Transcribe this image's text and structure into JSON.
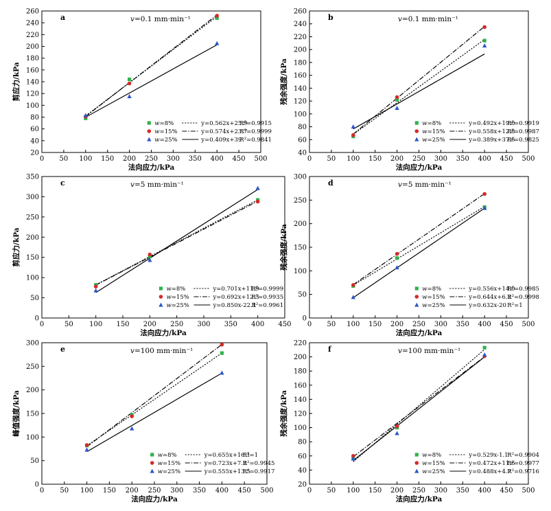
{
  "chart_data": [
    {
      "type": "scatter",
      "panel_label": "a",
      "annotation": "v=0.1 mm·min⁻¹",
      "xlabel": "法向应力/kPa",
      "ylabel": "剪应力/kPa",
      "xlim": [
        0,
        500
      ],
      "xticks": [
        0,
        50,
        100,
        150,
        200,
        250,
        300,
        350,
        400,
        450,
        500
      ],
      "ylim": [
        20,
        260
      ],
      "yticks": [
        20,
        40,
        60,
        80,
        100,
        120,
        140,
        160,
        180,
        200,
        220,
        240,
        260
      ],
      "series": [
        {
          "name": "w=8%",
          "marker": "square",
          "color": "#2fb34a",
          "points": [
            [
              100,
              78
            ],
            [
              200,
              144
            ],
            [
              400,
              248
            ]
          ],
          "fit": {
            "slope": 0.562,
            "intercept": 25.9,
            "dash": "dotted",
            "label": "y=0.562x+25.9",
            "r2": "R²=0.9915"
          }
        },
        {
          "name": "w=15%",
          "marker": "circle",
          "color": "#d62a2a",
          "points": [
            [
              100,
              81
            ],
            [
              200,
              137
            ],
            [
              400,
              252
            ]
          ],
          "fit": {
            "slope": 0.574,
            "intercept": 23.7,
            "dash": "dashdot",
            "label": "y=0.574x+23.7",
            "r2": "R²=0.9999"
          }
        },
        {
          "name": "w=25%",
          "marker": "triangle",
          "color": "#2a57c8",
          "points": [
            [
              100,
              83
            ],
            [
              200,
              115
            ],
            [
              400,
              205
            ]
          ],
          "fit": {
            "slope": 0.409,
            "intercept": 39,
            "dash": "solid",
            "label": "y=0.409x+39",
            "r2": "R²=0.9841"
          }
        }
      ]
    },
    {
      "type": "scatter",
      "panel_label": "b",
      "annotation": "v=0.1 mm·min⁻¹",
      "xlabel": "法向应力/kPa",
      "ylabel": "残余强度/kPa",
      "xlim": [
        0,
        500
      ],
      "xticks": [
        0,
        50,
        100,
        150,
        200,
        250,
        300,
        350,
        400,
        450,
        500
      ],
      "ylim": [
        40,
        260
      ],
      "yticks": [
        40,
        60,
        80,
        100,
        120,
        140,
        160,
        180,
        200,
        220,
        240,
        260
      ],
      "series": [
        {
          "name": "w=8%",
          "marker": "square",
          "color": "#2fb34a",
          "points": [
            [
              100,
              65
            ],
            [
              200,
              122
            ],
            [
              400,
              214
            ]
          ],
          "fit": {
            "slope": 0.492,
            "intercept": 19.0,
            "dash": "dotted",
            "label": "y=0.492x+19.0",
            "r2": "R²=0.9919"
          }
        },
        {
          "name": "w=15%",
          "marker": "circle",
          "color": "#d62a2a",
          "points": [
            [
              100,
              67
            ],
            [
              200,
              126
            ],
            [
              400,
              235
            ]
          ],
          "fit": {
            "slope": 0.558,
            "intercept": 12.8,
            "dash": "dashdot",
            "label": "y=0.558x+12.8",
            "r2": "R²=0.9987"
          }
        },
        {
          "name": "w=25%",
          "marker": "triangle",
          "color": "#2a57c8",
          "points": [
            [
              100,
              80
            ],
            [
              200,
              109
            ],
            [
              400,
              206
            ]
          ],
          "fit": {
            "slope": 0.389,
            "intercept": 37.6,
            "dash": "solid",
            "label": "y=0.389x+37.6",
            "r2": "R²=0.9825"
          }
        }
      ]
    },
    {
      "type": "scatter",
      "panel_label": "c",
      "annotation": "v=5 mm·min⁻¹",
      "xlabel": "法向应力/kPa",
      "ylabel": "剪应力/kPa",
      "xlim": [
        0,
        450
      ],
      "xticks": [
        0,
        50,
        100,
        150,
        200,
        250,
        300,
        350,
        400,
        450
      ],
      "ylim": [
        0,
        350
      ],
      "yticks": [
        0,
        50,
        100,
        150,
        200,
        250,
        300,
        350
      ],
      "series": [
        {
          "name": "w=8%",
          "marker": "square",
          "color": "#2fb34a",
          "points": [
            [
              100,
              82
            ],
            [
              200,
              152
            ],
            [
              400,
              292
            ]
          ],
          "fit": {
            "slope": 0.701,
            "intercept": 11.9,
            "dash": "dotted",
            "label": "y=0.701x+11.9",
            "r2": "R²=0.9999"
          }
        },
        {
          "name": "w=15%",
          "marker": "circle",
          "color": "#d62a2a",
          "points": [
            [
              100,
              78
            ],
            [
              200,
              157
            ],
            [
              400,
              288
            ]
          ],
          "fit": {
            "slope": 0.692,
            "intercept": 12.3,
            "dash": "dashdot",
            "label": "y=0.692x+12.3",
            "r2": "R²=0.9935"
          }
        },
        {
          "name": "w=25%",
          "marker": "triangle",
          "color": "#2a57c8",
          "points": [
            [
              100,
              68
            ],
            [
              200,
              143
            ],
            [
              400,
              321
            ]
          ],
          "fit": {
            "slope": 0.85,
            "intercept": -22.1,
            "dash": "solid",
            "label": "y=0.850x-22.1",
            "r2": "R²=0.9961"
          }
        }
      ]
    },
    {
      "type": "scatter",
      "panel_label": "d",
      "annotation": "v=5 mm·min⁻¹",
      "xlabel": "法向应力/kPa",
      "ylabel": "残余强度/kPa",
      "xlim": [
        0,
        500
      ],
      "xticks": [
        0,
        50,
        100,
        150,
        200,
        250,
        300,
        350,
        400,
        450,
        500
      ],
      "ylim": [
        0,
        300
      ],
      "yticks": [
        0,
        50,
        100,
        150,
        200,
        250,
        300
      ],
      "series": [
        {
          "name": "w=8%",
          "marker": "square",
          "color": "#2fb34a",
          "points": [
            [
              100,
              68
            ],
            [
              200,
              127
            ],
            [
              400,
              235
            ]
          ],
          "fit": {
            "slope": 0.556,
            "intercept": 14.0,
            "dash": "dotted",
            "label": "y=0.556x+14.0",
            "r2": "R²=0.9985"
          }
        },
        {
          "name": "w=15%",
          "marker": "circle",
          "color": "#d62a2a",
          "points": [
            [
              100,
              70
            ],
            [
              200,
              136
            ],
            [
              400,
              263
            ]
          ],
          "fit": {
            "slope": 0.644,
            "intercept": 6.2,
            "dash": "dashdot",
            "label": "y=0.644x+6.2",
            "r2": "R²=0.9998"
          }
        },
        {
          "name": "w=25%",
          "marker": "triangle",
          "color": "#2a57c8",
          "points": [
            [
              100,
              44
            ],
            [
              200,
              107
            ],
            [
              400,
              233
            ]
          ],
          "fit": {
            "slope": 0.632,
            "intercept": -20,
            "dash": "solid",
            "label": "y=0.632x-20",
            "r2": "R²=1"
          }
        }
      ]
    },
    {
      "type": "scatter",
      "panel_label": "e",
      "annotation": "v=100 mm·min⁻¹",
      "xlabel": "法向应力/kPa",
      "ylabel": "峰值强度/kPa",
      "xlim": [
        0,
        500
      ],
      "xticks": [
        0,
        50,
        100,
        150,
        200,
        250,
        300,
        350,
        400,
        450,
        500
      ],
      "ylim": [
        0,
        300
      ],
      "yticks": [
        0,
        50,
        100,
        150,
        200,
        250,
        300
      ],
      "series": [
        {
          "name": "w=8%",
          "marker": "square",
          "color": "#2fb34a",
          "points": [
            [
              100,
              82
            ],
            [
              200,
              147
            ],
            [
              400,
              278
            ]
          ],
          "fit": {
            "slope": 0.655,
            "intercept": 16.1,
            "dash": "dotted",
            "label": "y=0.655x+16.1",
            "r2": "R²=1"
          }
        },
        {
          "name": "w=15%",
          "marker": "circle",
          "color": "#d62a2a",
          "points": [
            [
              100,
              83
            ],
            [
              200,
              144
            ],
            [
              400,
              296
            ]
          ],
          "fit": {
            "slope": 0.723,
            "intercept": 7.2,
            "dash": "dashdot",
            "label": "y=0.723x+7.2",
            "r2": "R²=0.9945"
          }
        },
        {
          "name": "w=25%",
          "marker": "triangle",
          "color": "#2a57c8",
          "points": [
            [
              100,
              73
            ],
            [
              200,
              118
            ],
            [
              400,
              236
            ]
          ],
          "fit": {
            "slope": 0.555,
            "intercept": 13.5,
            "dash": "solid",
            "label": "y=0.555x+13.5",
            "r2": "R²=0.9917"
          }
        }
      ]
    },
    {
      "type": "scatter",
      "panel_label": "f",
      "annotation": "v=100 mm·min⁻¹",
      "xlabel": "法向应力/kPa",
      "ylabel": "残余强度/kPa",
      "xlim": [
        0,
        500
      ],
      "xticks": [
        0,
        50,
        100,
        150,
        200,
        250,
        300,
        350,
        400,
        450,
        500
      ],
      "ylim": [
        20,
        220
      ],
      "yticks": [
        20,
        40,
        60,
        80,
        100,
        120,
        140,
        160,
        180,
        200,
        220
      ],
      "series": [
        {
          "name": "w=8%",
          "marker": "square",
          "color": "#2fb34a",
          "points": [
            [
              100,
              56
            ],
            [
              200,
              100
            ],
            [
              400,
              213
            ]
          ],
          "fit": {
            "slope": 0.529,
            "intercept": -1.1,
            "dash": "dotted",
            "label": "y=0.529x-1.1",
            "r2": "R²=0.9904"
          }
        },
        {
          "name": "w=15%",
          "marker": "circle",
          "color": "#d62a2a",
          "points": [
            [
              100,
              60
            ],
            [
              200,
              102
            ],
            [
              400,
              201
            ]
          ],
          "fit": {
            "slope": 0.472,
            "intercept": 11.6,
            "dash": "dashdot",
            "label": "y=0.472x+11.6",
            "r2": "R²=0.9977"
          }
        },
        {
          "name": "w=25%",
          "marker": "triangle",
          "color": "#2a57c8",
          "points": [
            [
              100,
              56
            ],
            [
              200,
              92
            ],
            [
              400,
              203
            ]
          ],
          "fit": {
            "slope": 0.488,
            "intercept": 4.7,
            "dash": "solid",
            "label": "y=0.488x+4.7",
            "r2": "R²=0.9716"
          }
        }
      ]
    }
  ]
}
